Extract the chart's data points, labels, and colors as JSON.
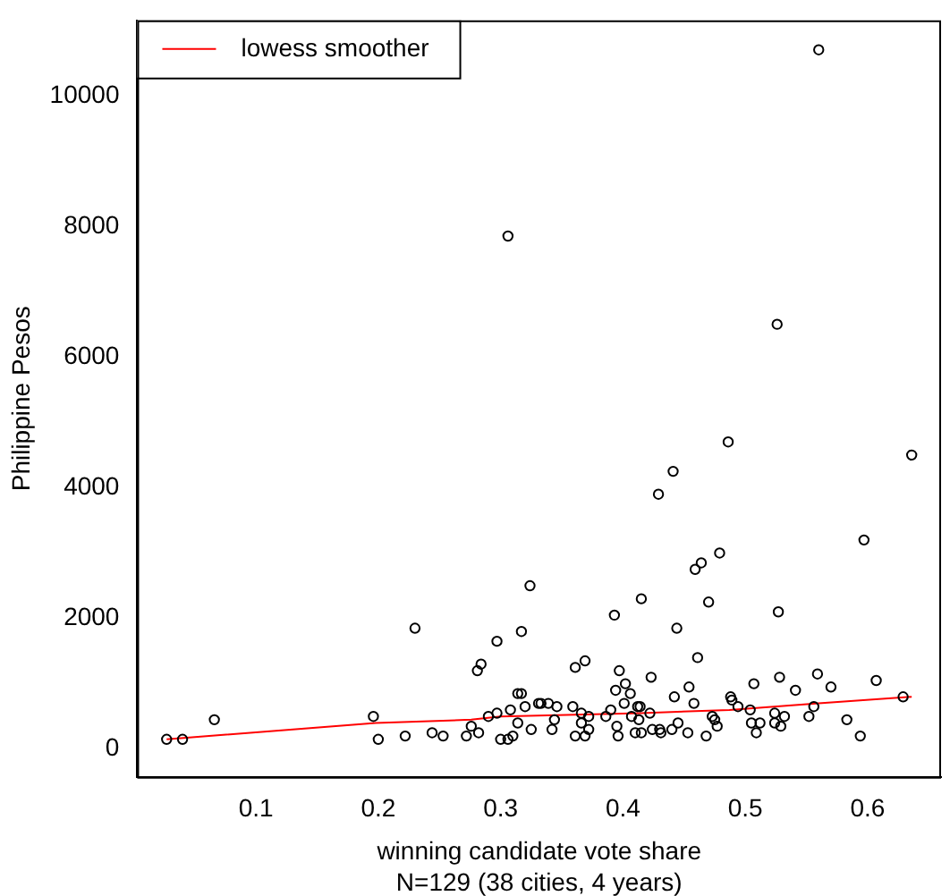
{
  "chart_data": {
    "type": "scatter",
    "xlabel": "winning candidate vote share",
    "ylabel": "Philippine Pesos",
    "annotations": [
      "N=129 (38 cities, 4 years)"
    ],
    "xlim": [
      0.003,
      0.66
    ],
    "ylim": [
      -425,
      11150
    ],
    "xticks": [
      0.1,
      0.2,
      0.3,
      0.4,
      0.5,
      0.6
    ],
    "yticks": [
      0,
      2000,
      4000,
      6000,
      8000,
      10000
    ],
    "grid": false,
    "legend": "top left",
    "series": [
      {
        "color": "#000000",
        "marker": "circle",
        "x": [
          0.027,
          0.04,
          0.066,
          0.196,
          0.2,
          0.23,
          0.222,
          0.244,
          0.253,
          0.272,
          0.276,
          0.282,
          0.281,
          0.284,
          0.297,
          0.29,
          0.297,
          0.3,
          0.306,
          0.31,
          0.308,
          0.314,
          0.317,
          0.324,
          0.314,
          0.317,
          0.32,
          0.325,
          0.331,
          0.333,
          0.339,
          0.346,
          0.344,
          0.342,
          0.359,
          0.361,
          0.369,
          0.361,
          0.366,
          0.366,
          0.369,
          0.372,
          0.372,
          0.386,
          0.39,
          0.393,
          0.394,
          0.397,
          0.395,
          0.396,
          0.402,
          0.401,
          0.406,
          0.407,
          0.41,
          0.412,
          0.414,
          0.413,
          0.415,
          0.415,
          0.422,
          0.423,
          0.424,
          0.43,
          0.431,
          0.44,
          0.442,
          0.444,
          0.445,
          0.453,
          0.454,
          0.458,
          0.459,
          0.464,
          0.461,
          0.468,
          0.47,
          0.473,
          0.475,
          0.477,
          0.479,
          0.488,
          0.489,
          0.494,
          0.504,
          0.507,
          0.505,
          0.509,
          0.512,
          0.524,
          0.524,
          0.527,
          0.528,
          0.532,
          0.529,
          0.541,
          0.552,
          0.556,
          0.559,
          0.57,
          0.583,
          0.594,
          0.607,
          0.629,
          0.597,
          0.56,
          0.306,
          0.526,
          0.486,
          0.636,
          0.441,
          0.429
        ],
        "values": [
          150,
          150,
          450,
          500,
          150,
          1850,
          200,
          250,
          200,
          200,
          350,
          250,
          1200,
          1300,
          1650,
          500,
          550,
          150,
          150,
          200,
          600,
          400,
          1800,
          2500,
          850,
          850,
          650,
          300,
          700,
          700,
          700,
          650,
          450,
          300,
          650,
          1250,
          1350,
          200,
          550,
          400,
          200,
          500,
          300,
          500,
          600,
          2050,
          900,
          1200,
          350,
          200,
          1000,
          700,
          850,
          500,
          250,
          650,
          650,
          450,
          2300,
          250,
          550,
          1100,
          300,
          300,
          250,
          300,
          800,
          1850,
          400,
          250,
          950,
          700,
          2750,
          2850,
          1400,
          200,
          2250,
          500,
          450,
          350,
          3000,
          800,
          750,
          650,
          600,
          1000,
          400,
          250,
          400,
          550,
          400,
          2100,
          1100,
          500,
          350,
          900,
          500,
          650,
          1150,
          950,
          450,
          200,
          1050,
          800,
          3200,
          10700,
          7850,
          6500,
          4700,
          4500,
          4250,
          3900
        ]
      },
      {
        "type": "line",
        "name": "lowess smoother",
        "color": "#ff0000",
        "marker": "none",
        "x": [
          0.027,
          0.198,
          0.276,
          0.3,
          0.415,
          0.487,
          0.56,
          0.636
        ],
        "values": [
          150,
          400,
          450,
          500,
          550,
          600,
          700,
          800
        ]
      }
    ]
  }
}
